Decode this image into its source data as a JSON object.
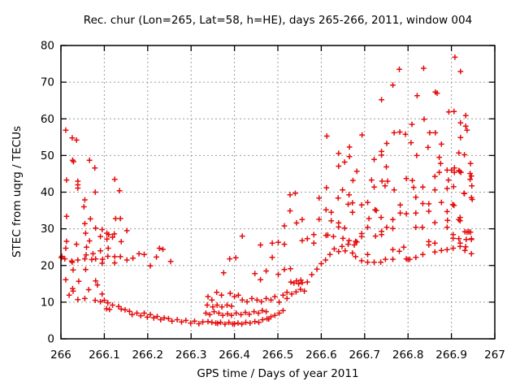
{
  "chart_data": {
    "type": "scatter",
    "title": "Rec. chur (Lon=265, Lat=58, h=HE), days 265-266, 2011, window 004",
    "xlabel": "GPS time / Days of year 2011",
    "ylabel": "STEC from uqrg / TECUs",
    "xlim": [
      266,
      267
    ],
    "ylim": [
      0,
      80
    ],
    "xticks": [
      266,
      266.1,
      266.2,
      266.3,
      266.4,
      266.5,
      266.6,
      266.7,
      266.8,
      266.9,
      267
    ],
    "yticks": [
      0,
      10,
      20,
      30,
      40,
      50,
      60,
      70,
      80
    ],
    "grid": true,
    "grid_color": "#9c9c9c",
    "marker": "plus",
    "marker_color": "#e60c0c",
    "legend": "none",
    "points": [
      [
        266.001,
        22.1
      ],
      [
        266.002,
        22.5
      ],
      [
        266.011,
        56.9
      ],
      [
        266.026,
        54.8
      ],
      [
        266.036,
        54.2
      ],
      [
        266.027,
        48.7
      ],
      [
        266.029,
        48.3
      ],
      [
        266.066,
        48.7
      ],
      [
        266.078,
        46.6
      ],
      [
        266.013,
        43.3
      ],
      [
        266.039,
        43.0
      ],
      [
        266.039,
        42.0
      ],
      [
        266.039,
        41.1
      ],
      [
        266.124,
        43.5
      ],
      [
        266.135,
        40.4
      ],
      [
        266.079,
        40.0
      ],
      [
        266.055,
        37.9
      ],
      [
        266.053,
        36.0
      ],
      [
        266.013,
        33.4
      ],
      [
        266.068,
        32.7
      ],
      [
        266.055,
        31.4
      ],
      [
        266.126,
        32.8
      ],
      [
        266.137,
        32.8
      ],
      [
        266.08,
        30.2
      ],
      [
        266.095,
        29.8
      ],
      [
        266.152,
        29.5
      ],
      [
        266.11,
        28.4
      ],
      [
        266.123,
        28.6
      ],
      [
        266.057,
        28.8
      ],
      [
        266.091,
        27.9
      ],
      [
        266.106,
        28.8
      ],
      [
        266.106,
        27.2
      ],
      [
        266.119,
        27.7
      ],
      [
        266.066,
        26.7
      ],
      [
        266.013,
        26.6
      ],
      [
        266.059,
        25.0
      ],
      [
        266.036,
        25.8
      ],
      [
        266.011,
        24.7
      ],
      [
        266.058,
        22.9
      ],
      [
        266.074,
        23.2
      ],
      [
        266.091,
        24.0
      ],
      [
        266.109,
        24.7
      ],
      [
        266.139,
        26.5
      ],
      [
        266.009,
        21.8
      ],
      [
        266.025,
        21.2
      ],
      [
        266.026,
        20.9
      ],
      [
        266.039,
        21.5
      ],
      [
        266.055,
        21.8
      ],
      [
        266.071,
        21.6
      ],
      [
        266.08,
        21.8
      ],
      [
        266.096,
        21.7
      ],
      [
        266.108,
        22.5
      ],
      [
        266.095,
        20.6
      ],
      [
        266.124,
        22.4
      ],
      [
        266.137,
        22.4
      ],
      [
        266.124,
        20.7
      ],
      [
        266.152,
        21.5
      ],
      [
        266.166,
        22.0
      ],
      [
        266.028,
        18.8
      ],
      [
        266.057,
        18.9
      ],
      [
        266.011,
        16.1
      ],
      [
        266.041,
        15.7
      ],
      [
        266.08,
        15.8
      ],
      [
        266.027,
        13.7
      ],
      [
        266.064,
        13.4
      ],
      [
        266.084,
        14.7
      ],
      [
        266.095,
        12.2
      ],
      [
        266.019,
        11.9
      ],
      [
        266.028,
        13.0
      ],
      [
        266.039,
        10.7
      ],
      [
        266.055,
        11.0
      ],
      [
        266.079,
        10.5
      ],
      [
        266.091,
        10.1
      ],
      [
        266.1,
        10.5
      ],
      [
        266.108,
        9.8
      ],
      [
        266.119,
        9.2
      ],
      [
        266.133,
        8.8
      ],
      [
        266.139,
        8.1
      ],
      [
        266.148,
        7.9
      ],
      [
        266.158,
        7.5
      ],
      [
        266.164,
        6.6
      ],
      [
        266.175,
        7.0
      ],
      [
        266.184,
        6.3
      ],
      [
        266.105,
        8.2
      ],
      [
        266.112,
        8.0
      ],
      [
        266.18,
        23.2
      ],
      [
        266.192,
        23.0
      ],
      [
        266.22,
        22.3
      ],
      [
        266.227,
        24.7
      ],
      [
        266.235,
        24.4
      ],
      [
        266.253,
        21.1
      ],
      [
        266.206,
        19.9
      ],
      [
        266.192,
        7.0
      ],
      [
        266.199,
        5.9
      ],
      [
        266.206,
        6.6
      ],
      [
        266.214,
        5.7
      ],
      [
        266.222,
        6.1
      ],
      [
        266.23,
        5.2
      ],
      [
        266.238,
        5.7
      ],
      [
        266.248,
        5.5
      ],
      [
        266.256,
        4.8
      ],
      [
        266.268,
        5.2
      ],
      [
        266.278,
        4.6
      ],
      [
        266.288,
        5.0
      ],
      [
        266.299,
        4.3
      ],
      [
        266.308,
        4.8
      ],
      [
        266.318,
        4.1
      ],
      [
        266.327,
        4.6
      ],
      [
        266.339,
        4.7
      ],
      [
        266.348,
        4.5
      ],
      [
        266.357,
        4.3
      ],
      [
        266.361,
        4.2
      ],
      [
        266.368,
        4.5
      ],
      [
        266.378,
        4.0
      ],
      [
        266.387,
        4.5
      ],
      [
        266.396,
        4.0
      ],
      [
        266.4,
        4.1
      ],
      [
        266.408,
        4.3
      ],
      [
        266.417,
        4.0
      ],
      [
        266.426,
        4.5
      ],
      [
        266.436,
        4.3
      ],
      [
        266.447,
        4.7
      ],
      [
        266.456,
        4.5
      ],
      [
        266.465,
        5.2
      ],
      [
        266.475,
        5.5
      ],
      [
        266.479,
        5.4
      ],
      [
        266.484,
        6.0
      ],
      [
        266.493,
        6.4
      ],
      [
        266.334,
        7.0
      ],
      [
        266.343,
        6.6
      ],
      [
        266.353,
        7.4
      ],
      [
        266.364,
        7.0
      ],
      [
        266.373,
        6.4
      ],
      [
        266.384,
        6.8
      ],
      [
        266.393,
        6.4
      ],
      [
        266.404,
        7.0
      ],
      [
        266.415,
        6.6
      ],
      [
        266.425,
        7.2
      ],
      [
        266.434,
        6.7
      ],
      [
        266.445,
        7.4
      ],
      [
        266.455,
        7.0
      ],
      [
        266.464,
        7.7
      ],
      [
        266.473,
        7.4
      ],
      [
        266.337,
        9.2
      ],
      [
        266.35,
        8.7
      ],
      [
        266.36,
        9.2
      ],
      [
        266.371,
        8.7
      ],
      [
        266.383,
        9.2
      ],
      [
        266.393,
        8.9
      ],
      [
        266.339,
        11.5
      ],
      [
        266.348,
        10.6
      ],
      [
        266.359,
        12.7
      ],
      [
        266.37,
        11.9
      ],
      [
        266.39,
        12.4
      ],
      [
        266.4,
        11.5
      ],
      [
        266.409,
        11.9
      ],
      [
        266.418,
        10.6
      ],
      [
        266.429,
        10.1
      ],
      [
        266.44,
        11.0
      ],
      [
        266.452,
        10.6
      ],
      [
        266.462,
        10.1
      ],
      [
        266.473,
        11.0
      ],
      [
        266.418,
        28.0
      ],
      [
        266.389,
        21.8
      ],
      [
        266.403,
        22.1
      ],
      [
        266.375,
        18.0
      ],
      [
        266.447,
        17.8
      ],
      [
        266.46,
        16.1
      ],
      [
        266.473,
        18.5
      ],
      [
        266.487,
        22.2
      ],
      [
        266.46,
        25.6
      ],
      [
        266.487,
        26.1
      ],
      [
        266.501,
        26.3
      ],
      [
        266.503,
        7.0
      ],
      [
        266.512,
        7.7
      ],
      [
        266.503,
        10.0
      ],
      [
        266.484,
        10.6
      ],
      [
        266.493,
        11.5
      ],
      [
        266.512,
        11.9
      ],
      [
        266.521,
        11.0
      ],
      [
        266.521,
        12.7
      ],
      [
        266.532,
        12.2
      ],
      [
        266.542,
        12.8
      ],
      [
        266.552,
        13.5
      ],
      [
        266.561,
        13.0
      ],
      [
        266.53,
        15.5
      ],
      [
        266.537,
        15.2
      ],
      [
        266.543,
        15.8
      ],
      [
        266.548,
        15.0
      ],
      [
        266.553,
        16.0
      ],
      [
        266.556,
        15.3
      ],
      [
        266.568,
        15.5
      ],
      [
        266.578,
        17.5
      ],
      [
        266.59,
        19.0
      ],
      [
        266.6,
        20.5
      ],
      [
        266.61,
        21.5
      ],
      [
        266.62,
        23.0
      ],
      [
        266.63,
        24.5
      ],
      [
        266.64,
        23.8
      ],
      [
        266.648,
        25.2
      ],
      [
        266.655,
        24.0
      ],
      [
        266.662,
        25.8
      ],
      [
        266.501,
        17.6
      ],
      [
        266.515,
        18.9
      ],
      [
        266.529,
        19.1
      ],
      [
        266.515,
        25.8
      ],
      [
        266.515,
        30.8
      ],
      [
        266.528,
        34.9
      ],
      [
        266.528,
        39.3
      ],
      [
        266.54,
        39.7
      ],
      [
        266.543,
        31.6
      ],
      [
        266.556,
        32.5
      ],
      [
        266.556,
        26.8
      ],
      [
        266.568,
        27.3
      ],
      [
        266.583,
        28.4
      ],
      [
        266.583,
        26.1
      ],
      [
        266.595,
        38.4
      ],
      [
        266.595,
        32.6
      ],
      [
        266.611,
        35.2
      ],
      [
        266.611,
        28.2
      ],
      [
        266.615,
        28.3
      ],
      [
        266.623,
        34.5
      ],
      [
        266.623,
        32.2
      ],
      [
        266.628,
        27.9
      ],
      [
        266.639,
        38.4
      ],
      [
        266.64,
        31.6
      ],
      [
        266.64,
        30.5
      ],
      [
        266.65,
        27.4
      ],
      [
        266.654,
        30.2
      ],
      [
        266.664,
        39.3
      ],
      [
        266.662,
        36.7
      ],
      [
        266.664,
        26.8
      ],
      [
        266.613,
        55.3
      ],
      [
        266.64,
        50.6
      ],
      [
        266.665,
        52.3
      ],
      [
        266.665,
        49.7
      ],
      [
        266.654,
        48.2
      ],
      [
        266.64,
        47.1
      ],
      [
        266.612,
        41.2
      ],
      [
        266.649,
        40.6
      ],
      [
        266.908,
        76.8
      ],
      [
        266.78,
        73.5
      ],
      [
        266.836,
        73.8
      ],
      [
        266.921,
        72.9
      ],
      [
        266.765,
        69.2
      ],
      [
        266.863,
        67.3
      ],
      [
        266.867,
        67.0
      ],
      [
        266.821,
        66.3
      ],
      [
        266.739,
        65.2
      ],
      [
        266.894,
        61.9
      ],
      [
        266.906,
        62.0
      ],
      [
        266.933,
        60.9
      ],
      [
        266.921,
        58.9
      ],
      [
        266.837,
        59.9
      ],
      [
        266.809,
        58.5
      ],
      [
        266.933,
        58.0
      ],
      [
        266.936,
        56.9
      ],
      [
        266.694,
        55.6
      ],
      [
        266.768,
        56.2
      ],
      [
        266.781,
        56.4
      ],
      [
        266.794,
        55.8
      ],
      [
        266.85,
        56.2
      ],
      [
        266.863,
        56.2
      ],
      [
        266.921,
        54.9
      ],
      [
        266.751,
        53.3
      ],
      [
        266.807,
        53.5
      ],
      [
        266.846,
        52.2
      ],
      [
        266.877,
        53.1
      ],
      [
        266.739,
        51.1
      ],
      [
        266.739,
        50.1
      ],
      [
        266.722,
        48.9
      ],
      [
        266.82,
        50.0
      ],
      [
        266.872,
        49.5
      ],
      [
        266.917,
        50.7
      ],
      [
        266.93,
        50.2
      ],
      [
        266.944,
        47.8
      ],
      [
        266.75,
        46.9
      ],
      [
        266.682,
        45.7
      ],
      [
        266.875,
        47.8
      ],
      [
        266.917,
        45.9
      ],
      [
        266.919,
        45.7
      ],
      [
        266.673,
        43.2
      ],
      [
        266.716,
        43.3
      ],
      [
        266.74,
        43.0
      ],
      [
        266.753,
        43.0
      ],
      [
        266.722,
        41.4
      ],
      [
        266.747,
        41.7
      ],
      [
        266.768,
        40.6
      ],
      [
        266.796,
        43.7
      ],
      [
        266.81,
        43.2
      ],
      [
        266.813,
        41.3
      ],
      [
        266.834,
        41.4
      ],
      [
        266.862,
        44.3
      ],
      [
        266.872,
        45.4
      ],
      [
        266.89,
        46.0
      ],
      [
        266.9,
        46.0
      ],
      [
        266.907,
        46.6
      ],
      [
        266.907,
        45.4
      ],
      [
        266.922,
        45.4
      ],
      [
        266.893,
        43.3
      ],
      [
        266.905,
        41.5
      ],
      [
        266.89,
        41.0
      ],
      [
        266.943,
        45.1
      ],
      [
        266.943,
        43.5
      ],
      [
        266.946,
        44.4
      ],
      [
        266.947,
        41.7
      ],
      [
        266.862,
        40.6
      ],
      [
        266.929,
        39.7
      ],
      [
        266.946,
        38.5
      ],
      [
        266.672,
        37.1
      ],
      [
        266.693,
        36.5
      ],
      [
        266.707,
        37.2
      ],
      [
        266.724,
        35.2
      ],
      [
        266.727,
        35.0
      ],
      [
        266.672,
        34.5
      ],
      [
        266.71,
        32.8
      ],
      [
        266.738,
        33.1
      ],
      [
        266.765,
        32.5
      ],
      [
        266.782,
        36.5
      ],
      [
        266.782,
        34.3
      ],
      [
        266.796,
        34.1
      ],
      [
        266.818,
        34.3
      ],
      [
        266.818,
        38.6
      ],
      [
        266.834,
        36.9
      ],
      [
        266.848,
        36.8
      ],
      [
        266.848,
        34.8
      ],
      [
        266.877,
        37.2
      ],
      [
        266.89,
        34.7
      ],
      [
        266.903,
        36.6
      ],
      [
        266.906,
        36.4
      ],
      [
        266.93,
        39.6
      ],
      [
        266.948,
        38.0
      ],
      [
        266.92,
        33.1
      ],
      [
        266.92,
        32.2
      ],
      [
        266.891,
        32.3
      ],
      [
        266.862,
        31.7
      ],
      [
        266.833,
        30.4
      ],
      [
        266.818,
        30.4
      ],
      [
        266.765,
        30.1
      ],
      [
        266.751,
        30.4
      ],
      [
        266.739,
        29.3
      ],
      [
        266.739,
        28.4
      ],
      [
        266.725,
        28.0
      ],
      [
        266.707,
        30.4
      ],
      [
        266.693,
        28.7
      ],
      [
        266.693,
        27.9
      ],
      [
        266.89,
        30.4
      ],
      [
        266.917,
        32.5
      ],
      [
        266.931,
        29.2
      ],
      [
        266.936,
        29.1
      ],
      [
        266.94,
        29.2
      ],
      [
        266.944,
        29.1
      ],
      [
        266.679,
        26.6
      ],
      [
        266.682,
        26.4
      ],
      [
        266.676,
        25.6
      ],
      [
        266.848,
        26.5
      ],
      [
        266.848,
        25.6
      ],
      [
        266.862,
        26.1
      ],
      [
        266.92,
        26.1
      ],
      [
        266.92,
        25.2
      ],
      [
        266.946,
        27.1
      ],
      [
        266.934,
        27.1
      ],
      [
        266.904,
        28.4
      ],
      [
        266.904,
        27.4
      ],
      [
        266.917,
        27.3
      ],
      [
        266.946,
        27.3
      ],
      [
        266.933,
        25.1
      ],
      [
        266.79,
        25.0
      ],
      [
        266.765,
        24.3
      ],
      [
        266.78,
        23.9
      ],
      [
        266.904,
        24.7
      ],
      [
        266.89,
        24.3
      ],
      [
        266.877,
        24.1
      ],
      [
        266.931,
        24.1
      ],
      [
        266.946,
        23.2
      ],
      [
        266.862,
        23.7
      ],
      [
        266.834,
        23.0
      ],
      [
        266.818,
        22.2
      ],
      [
        266.672,
        23.4
      ],
      [
        266.679,
        22.4
      ],
      [
        266.693,
        21.3
      ],
      [
        266.707,
        23.0
      ],
      [
        266.707,
        20.9
      ],
      [
        266.722,
        20.9
      ],
      [
        266.737,
        20.9
      ],
      [
        266.748,
        21.7
      ],
      [
        266.765,
        21.7
      ],
      [
        266.796,
        21.8
      ],
      [
        266.8,
        21.6
      ],
      [
        266.804,
        21.7
      ]
    ]
  }
}
